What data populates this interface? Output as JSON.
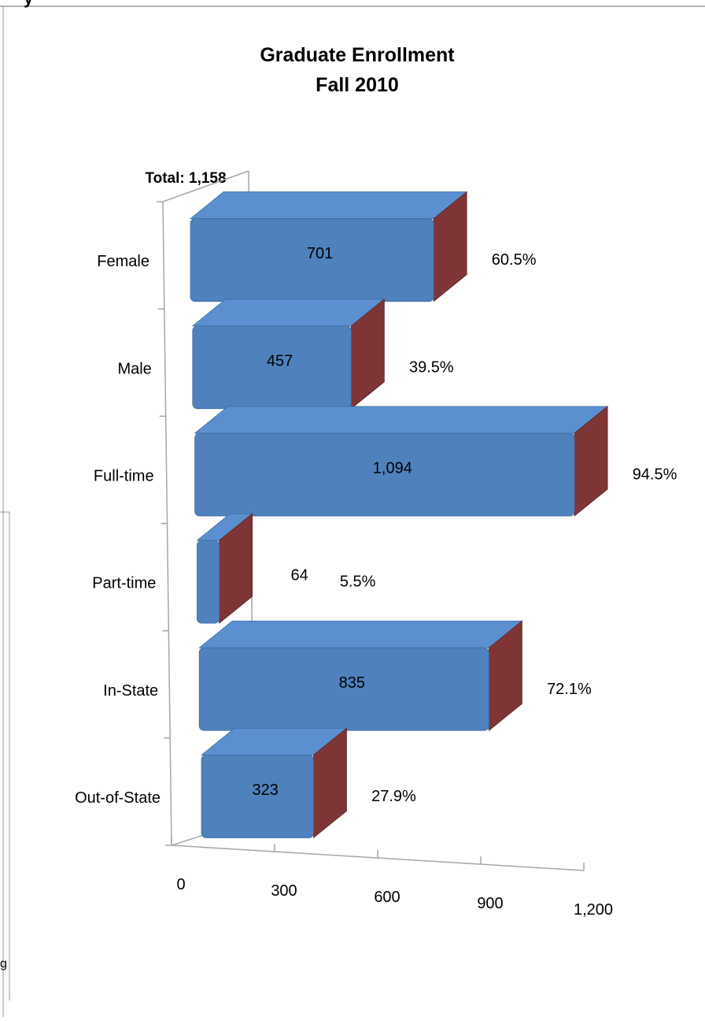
{
  "header_fragment": "y",
  "side_fragment": "g",
  "chart_data": {
    "type": "bar",
    "orientation": "horizontal",
    "style": "3d",
    "title": [
      "Graduate Enrollment",
      "Fall 2010"
    ],
    "total_label": "Total: 1,158",
    "categories": [
      "Female",
      "Male",
      "Full-time",
      "Part-time",
      "In-State",
      "Out-of-State"
    ],
    "values": [
      701,
      457,
      1094,
      64,
      835,
      323
    ],
    "value_labels": [
      "701",
      "457",
      "1,094",
      "64",
      "835",
      "323"
    ],
    "percent_labels": [
      "60.5%",
      "39.5%",
      "94.5%",
      "5.5%",
      "72.1%",
      "27.9%"
    ],
    "x_ticks": [
      0,
      300,
      600,
      900,
      1200
    ],
    "x_tick_labels": [
      "0",
      "300",
      "600",
      "900",
      "1,200"
    ],
    "xlim": [
      0,
      1200
    ],
    "grid": true,
    "colors": {
      "bar_front": "#4f81bd",
      "bar_top": "#5b8fd0",
      "bar_side": "#7f3535",
      "axis": "#a6a6a6"
    }
  }
}
